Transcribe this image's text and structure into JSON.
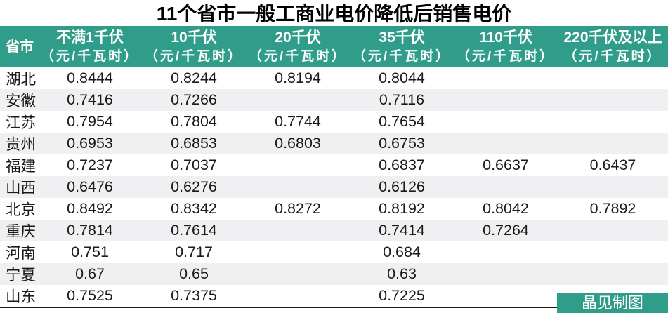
{
  "title": "11个省市一般工商业电价降低后销售电价",
  "chart_data": {
    "type": "table",
    "title": "11个省市一般工商业电价降低后销售电价",
    "unit": "元/千瓦时",
    "columns": [
      {
        "label": "省市",
        "sub": ""
      },
      {
        "label": "不满1千伏",
        "sub": "（元/千瓦时）"
      },
      {
        "label": "10千伏",
        "sub": "（元/千瓦时）"
      },
      {
        "label": "20千伏",
        "sub": "（元/千瓦时）"
      },
      {
        "label": "35千伏",
        "sub": "（元/千瓦时）"
      },
      {
        "label": "110千伏",
        "sub": "（元/千瓦时）"
      },
      {
        "label": "220千伏及以上",
        "sub": "（元/千瓦时）"
      }
    ],
    "rows": [
      {
        "province": "湖北",
        "values": [
          "0.8444",
          "0.8244",
          "0.8194",
          "0.8044",
          "",
          ""
        ]
      },
      {
        "province": "安徽",
        "values": [
          "0.7416",
          "0.7266",
          "",
          "0.7116",
          "",
          ""
        ]
      },
      {
        "province": "江苏",
        "values": [
          "0.7954",
          "0.7804",
          "0.7744",
          "0.7654",
          "",
          ""
        ]
      },
      {
        "province": "贵州",
        "values": [
          "0.6953",
          "0.6853",
          "0.6803",
          "0.6753",
          "",
          ""
        ]
      },
      {
        "province": "福建",
        "values": [
          "0.7237",
          "0.7037",
          "",
          "0.6837",
          "0.6637",
          "0.6437"
        ]
      },
      {
        "province": "山西",
        "values": [
          "0.6476",
          "0.6276",
          "",
          "0.6126",
          "",
          ""
        ]
      },
      {
        "province": "北京",
        "values": [
          "0.8492",
          "0.8342",
          "0.8272",
          "0.8192",
          "0.8042",
          "0.7892"
        ]
      },
      {
        "province": "重庆",
        "values": [
          "0.7814",
          "0.7614",
          "",
          "0.7414",
          "0.7264",
          ""
        ]
      },
      {
        "province": "河南",
        "values": [
          "0.751",
          "0.717",
          "",
          "0.684",
          "",
          ""
        ]
      },
      {
        "province": "宁夏",
        "values": [
          "0.67",
          "0.65",
          "",
          "0.63",
          "",
          ""
        ]
      },
      {
        "province": "山东",
        "values": [
          "0.7525",
          "0.7375",
          "",
          "0.7225",
          "",
          ""
        ]
      }
    ]
  },
  "footer": {
    "credit": "晶见制图"
  },
  "colors": {
    "accent_teal": "#2F9D89",
    "row_alt_gray": "#F0F0F2",
    "border_dark": "#1A1A1A",
    "header_text": "#FFFFFF",
    "body_text": "#1A1A1A",
    "title_text": "#000000"
  }
}
